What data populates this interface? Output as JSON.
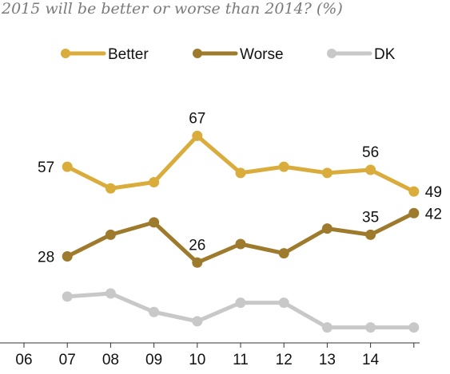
{
  "title": "2015 will be better or worse than 2014? (%)",
  "chart_data": {
    "type": "line",
    "x": [
      "06",
      "07",
      "08",
      "09",
      "10",
      "11",
      "12",
      "13",
      "14",
      ""
    ],
    "series": [
      {
        "name": "Better",
        "color": "#d9ac3c",
        "values": [
          null,
          57,
          50,
          52,
          67,
          55,
          57,
          55,
          56,
          49
        ]
      },
      {
        "name": "Worse",
        "color": "#9e7a2c",
        "values": [
          null,
          28,
          35,
          39,
          26,
          32,
          29,
          37,
          35,
          42
        ]
      },
      {
        "name": "DK",
        "color": "#c8c8c8",
        "values": [
          null,
          15,
          16,
          10,
          7,
          13,
          13,
          5,
          5,
          5
        ]
      }
    ],
    "data_labels": [
      {
        "series": 0,
        "index": 1,
        "text": "57"
      },
      {
        "series": 0,
        "index": 4,
        "text": "67"
      },
      {
        "series": 0,
        "index": 8,
        "text": "56"
      },
      {
        "series": 0,
        "index": 9,
        "text": "49"
      },
      {
        "series": 1,
        "index": 1,
        "text": "28"
      },
      {
        "series": 1,
        "index": 4,
        "text": "26"
      },
      {
        "series": 1,
        "index": 8,
        "text": "35"
      },
      {
        "series": 1,
        "index": 9,
        "text": "42"
      }
    ],
    "ylim": [
      0,
      80
    ],
    "grid": false,
    "legend_position": "top"
  }
}
